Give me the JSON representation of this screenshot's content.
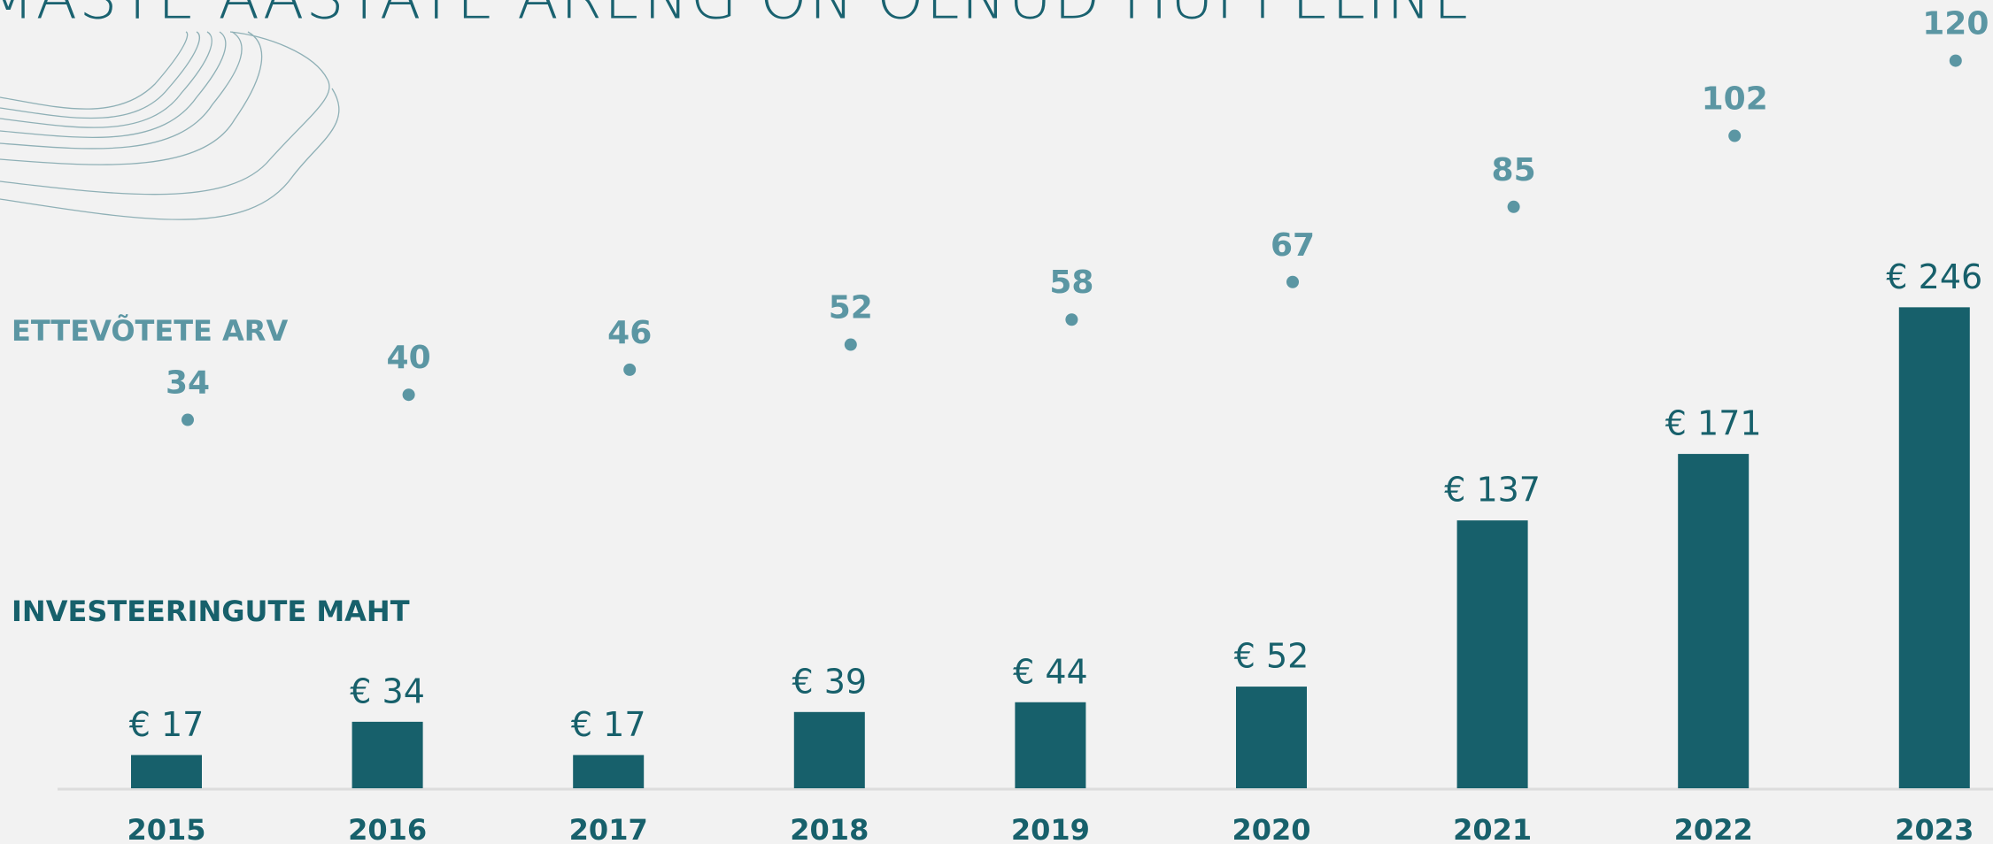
{
  "chart_data": {
    "type": "bar",
    "title": "MASTE AASTATE ARENG ON OLNUD HÜPPELINE",
    "categories": [
      "2015",
      "2016",
      "2017",
      "2018",
      "2019",
      "2020",
      "2021",
      "2022",
      "2023"
    ],
    "series": [
      {
        "name": "INVESTEERINGUTE MAHT",
        "color": "#17606b",
        "values": [
          17,
          34,
          17,
          39,
          44,
          52,
          137,
          171,
          246
        ],
        "value_labels": [
          "€ 17",
          "€ 34",
          "€ 17",
          "€ 39",
          "€ 44",
          "€ 52",
          "€ 137",
          "€ 171",
          "€ 246"
        ]
      },
      {
        "name": "ETTEVÕTETE ARV",
        "color": "#5b96a3",
        "axis": "y2",
        "values": [
          34,
          40,
          46,
          52,
          58,
          67,
          85,
          102,
          120
        ]
      }
    ]
  }
}
